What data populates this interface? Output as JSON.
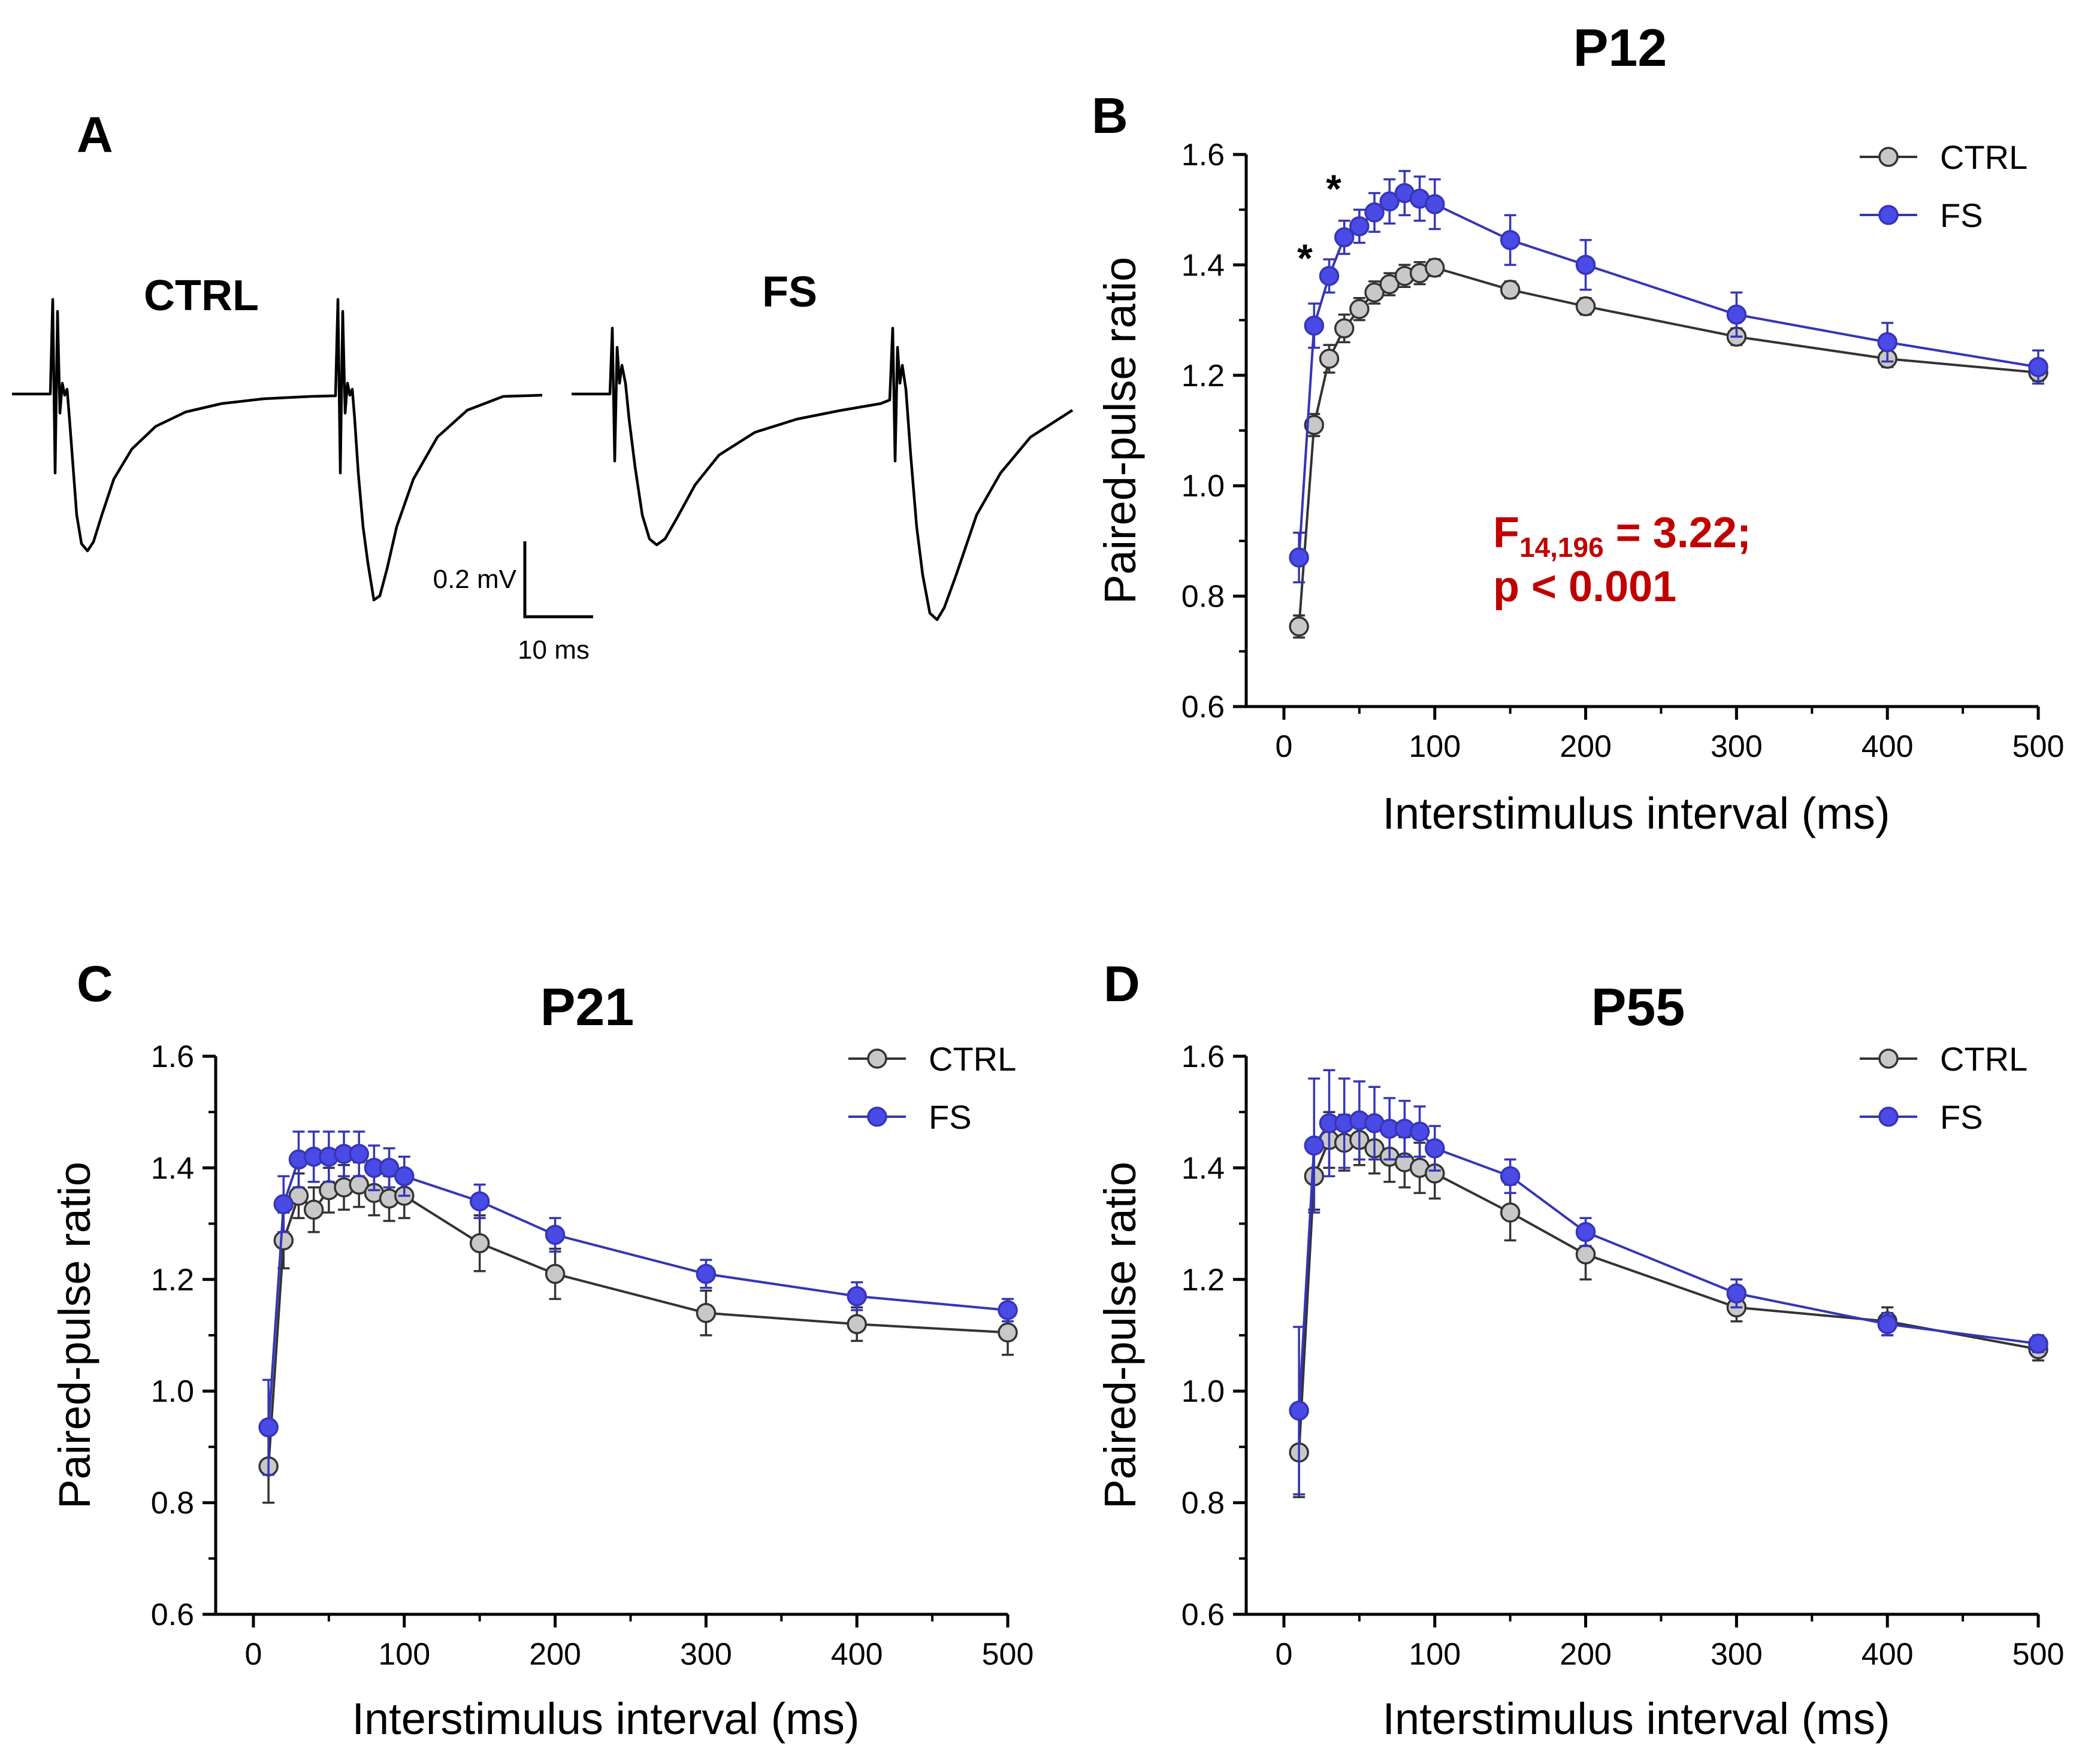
{
  "panels": {
    "a": {
      "letter": "A",
      "ctrl_label": "CTRL",
      "fs_label": "FS",
      "scale_y": "0.2 mV",
      "scale_x": "10 ms",
      "trace_color": "#000000"
    },
    "b": {
      "letter": "B"
    },
    "c": {
      "letter": "C"
    },
    "d": {
      "letter": "D"
    }
  },
  "colors": {
    "ctrl_fill": "#c8c8c8",
    "ctrl_line": "#333333",
    "fs_fill": "#4a4ae6",
    "fs_line": "#3535b8",
    "stats": "#c00000"
  },
  "stats": {
    "line1_prefix": "F",
    "line1_sub": "14,196",
    "line1_suffix": " = 3.22;",
    "line2": "p < 0.001"
  },
  "significance_markers": [
    "*",
    "*"
  ],
  "chart_data": [
    {
      "id": "b",
      "type": "line",
      "title": "P12",
      "xlabel": "Interstimulus interval (ms)",
      "ylabel": "Paired-pulse ratio",
      "xlim": [
        -25,
        500
      ],
      "ylim": [
        0.6,
        1.6
      ],
      "xticks": [
        0,
        100,
        200,
        300,
        400,
        500
      ],
      "yticks": [
        0.6,
        0.8,
        1.0,
        1.2,
        1.4,
        1.6
      ],
      "ytick_labels": [
        "0.6",
        "0.8",
        "1.0",
        "1.2",
        "1.4",
        "1.6"
      ],
      "legend": "top-right",
      "x": [
        10,
        20,
        30,
        40,
        50,
        60,
        70,
        80,
        90,
        100,
        150,
        200,
        300,
        400,
        500
      ],
      "series": [
        {
          "name": "CTRL",
          "values": [
            0.745,
            1.11,
            1.23,
            1.285,
            1.32,
            1.35,
            1.365,
            1.38,
            1.385,
            1.395,
            1.355,
            1.325,
            1.27,
            1.23,
            1.205
          ],
          "errors": [
            0.02,
            0.02,
            0.025,
            0.025,
            0.02,
            0.02,
            0.02,
            0.02,
            0.02,
            0.015,
            0.015,
            0.015,
            0.015,
            0.015,
            0.015
          ]
        },
        {
          "name": "FS",
          "values": [
            0.87,
            1.29,
            1.38,
            1.45,
            1.47,
            1.495,
            1.515,
            1.53,
            1.52,
            1.51,
            1.445,
            1.4,
            1.31,
            1.26,
            1.215
          ],
          "errors": [
            0.045,
            0.04,
            0.03,
            0.03,
            0.03,
            0.035,
            0.04,
            0.04,
            0.04,
            0.045,
            0.045,
            0.045,
            0.04,
            0.035,
            0.03
          ]
        }
      ]
    },
    {
      "id": "c",
      "type": "line",
      "title": "P21",
      "xlabel": "Interstimulus interval (ms)",
      "ylabel": "Paired-pulse ratio",
      "xlim": [
        -25,
        500
      ],
      "ylim": [
        0.6,
        1.6
      ],
      "xticks": [
        0,
        100,
        200,
        300,
        400,
        500
      ],
      "yticks": [
        0.6,
        0.8,
        1.0,
        1.2,
        1.4,
        1.6
      ],
      "ytick_labels": [
        "0.6",
        "0.8",
        "1.0",
        "1.2",
        "1.4",
        "1.6"
      ],
      "legend": "top-right",
      "x": [
        10,
        20,
        30,
        40,
        50,
        60,
        70,
        80,
        90,
        100,
        150,
        200,
        300,
        400,
        500
      ],
      "series": [
        {
          "name": "CTRL",
          "values": [
            0.865,
            1.27,
            1.35,
            1.325,
            1.36,
            1.365,
            1.37,
            1.355,
            1.345,
            1.35,
            1.265,
            1.21,
            1.14,
            1.12,
            1.105
          ],
          "errors": [
            0.065,
            0.05,
            0.04,
            0.04,
            0.04,
            0.04,
            0.04,
            0.04,
            0.04,
            0.04,
            0.05,
            0.045,
            0.04,
            0.03,
            0.04
          ]
        },
        {
          "name": "FS",
          "values": [
            0.935,
            1.335,
            1.415,
            1.42,
            1.42,
            1.425,
            1.425,
            1.4,
            1.4,
            1.385,
            1.34,
            1.28,
            1.21,
            1.17,
            1.145
          ],
          "errors": [
            0.085,
            0.05,
            0.05,
            0.045,
            0.045,
            0.04,
            0.04,
            0.04,
            0.035,
            0.035,
            0.03,
            0.03,
            0.025,
            0.025,
            0.02
          ]
        }
      ]
    },
    {
      "id": "d",
      "type": "line",
      "title": "P55",
      "xlabel": "Interstimulus interval (ms)",
      "ylabel": "Paired-pulse ratio",
      "xlim": [
        -25,
        500
      ],
      "ylim": [
        0.6,
        1.6
      ],
      "xticks": [
        0,
        100,
        200,
        300,
        400,
        500
      ],
      "yticks": [
        0.6,
        0.8,
        1.0,
        1.2,
        1.4,
        1.6
      ],
      "ytick_labels": [
        "0.6",
        "0.8",
        "1.0",
        "1.2",
        "1.4",
        "1.6"
      ],
      "legend": "top-right",
      "x": [
        10,
        20,
        30,
        40,
        50,
        60,
        70,
        80,
        90,
        100,
        150,
        200,
        300,
        400,
        500
      ],
      "series": [
        {
          "name": "CTRL",
          "values": [
            0.89,
            1.385,
            1.45,
            1.445,
            1.45,
            1.435,
            1.42,
            1.41,
            1.4,
            1.39,
            1.32,
            1.245,
            1.15,
            1.125,
            1.075
          ],
          "errors": [
            0.08,
            0.06,
            0.05,
            0.05,
            0.045,
            0.045,
            0.045,
            0.045,
            0.045,
            0.045,
            0.05,
            0.045,
            0.025,
            0.025,
            0.02
          ]
        },
        {
          "name": "FS",
          "values": [
            0.965,
            1.44,
            1.48,
            1.48,
            1.485,
            1.48,
            1.47,
            1.47,
            1.465,
            1.435,
            1.385,
            1.285,
            1.175,
            1.12,
            1.085
          ],
          "errors": [
            0.15,
            0.12,
            0.095,
            0.08,
            0.07,
            0.065,
            0.055,
            0.05,
            0.045,
            0.04,
            0.03,
            0.025,
            0.025,
            0.02,
            0.015
          ]
        }
      ]
    }
  ]
}
